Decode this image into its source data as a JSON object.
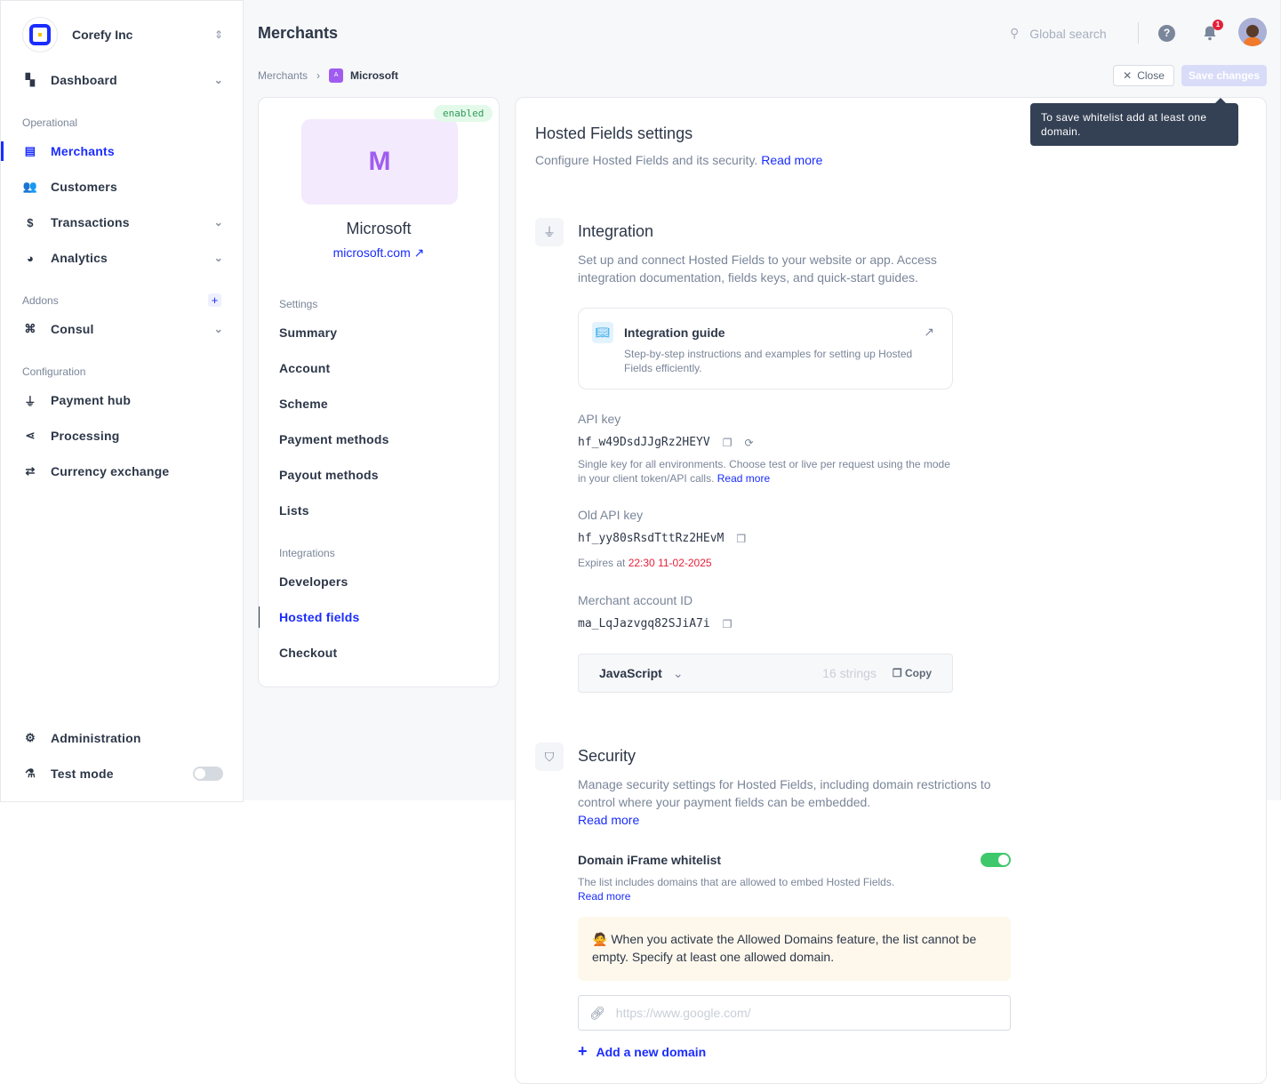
{
  "org": {
    "name": "Corefy Inc"
  },
  "sidebar": {
    "dashboard": "Dashboard",
    "sections": {
      "operational": "Operational",
      "addons": "Addons",
      "configuration": "Configuration"
    },
    "items": [
      {
        "label": "Merchants",
        "icon": "store-icon"
      },
      {
        "label": "Customers",
        "icon": "users-icon"
      },
      {
        "label": "Transactions",
        "icon": "dollar-icon"
      },
      {
        "label": "Analytics",
        "icon": "pie-chart-icon"
      },
      {
        "label": "Consul",
        "icon": "command-icon"
      },
      {
        "label": "Payment hub",
        "icon": "plug-icon"
      },
      {
        "label": "Processing",
        "icon": "route-icon"
      },
      {
        "label": "Currency exchange",
        "icon": "exchange-icon"
      }
    ],
    "administration": "Administration",
    "test_mode": "Test mode",
    "test_mode_on": false
  },
  "header": {
    "title": "Merchants",
    "search_placeholder": "Global search",
    "notifications": "1"
  },
  "breadcrumb": {
    "root": "Merchants",
    "avatar_letter": "A",
    "current": "Microsoft"
  },
  "actions": {
    "close": "Close",
    "save": "Save changes",
    "tooltip": "To save whitelist add at least one domain."
  },
  "merchant": {
    "status": "enabled",
    "initial": "M",
    "name": "Microsoft",
    "site": "microsoft.com",
    "settings_label": "Settings",
    "settings": [
      "Summary",
      "Account",
      "Scheme",
      "Payment methods",
      "Payout methods",
      "Lists"
    ],
    "integrations_label": "Integrations",
    "integrations": [
      "Developers",
      "Hosted fields",
      "Checkout"
    ]
  },
  "main": {
    "title": "Hosted Fields settings",
    "subtitle": "Configure Hosted Fields and its security.",
    "read_more": "Read more",
    "integration": {
      "title": "Integration",
      "desc": "Set up and connect Hosted Fields to your website or app. Access integration documentation, fields keys, and quick-start guides.",
      "guide_title": "Integration guide",
      "guide_desc": "Step-by-step instructions and examples for setting up Hosted Fields efficiently.",
      "api_key_label": "API key",
      "api_key": "hf_w49DsdJJgRz2HEYV",
      "api_key_note": "Single key for all environments. Choose test or live per request using the mode in your client token/API calls.",
      "old_key_label": "Old API key",
      "old_key": "hf_yy80sRsdTttRz2HEvM",
      "expires_label": "Expires at",
      "expires": "22:30 11-02-2025",
      "account_id_label": "Merchant account ID",
      "account_id": "ma_LqJazvgq82SJiA7i",
      "language": "JavaScript",
      "strings": "16 strings",
      "copy": "Copy"
    },
    "security": {
      "title": "Security",
      "desc": "Manage security settings for Hosted Fields, including domain restrictions to control where your payment fields can be embedded.",
      "whitelist_title": "Domain iFrame whitelist",
      "whitelist_on": true,
      "whitelist_desc": "The list includes domains that are allowed to embed Hosted Fields.",
      "warning": "When you activate the Allowed Domains feature, the list cannot be empty. Specify at least one allowed domain.",
      "domain_placeholder": "https://www.google.com/",
      "add_domain": "Add a new domain"
    }
  },
  "colors": {
    "accent": "#1a2cff",
    "success": "#3fc86b",
    "danger": "#e5203a",
    "merchant": "#a05cf0"
  }
}
